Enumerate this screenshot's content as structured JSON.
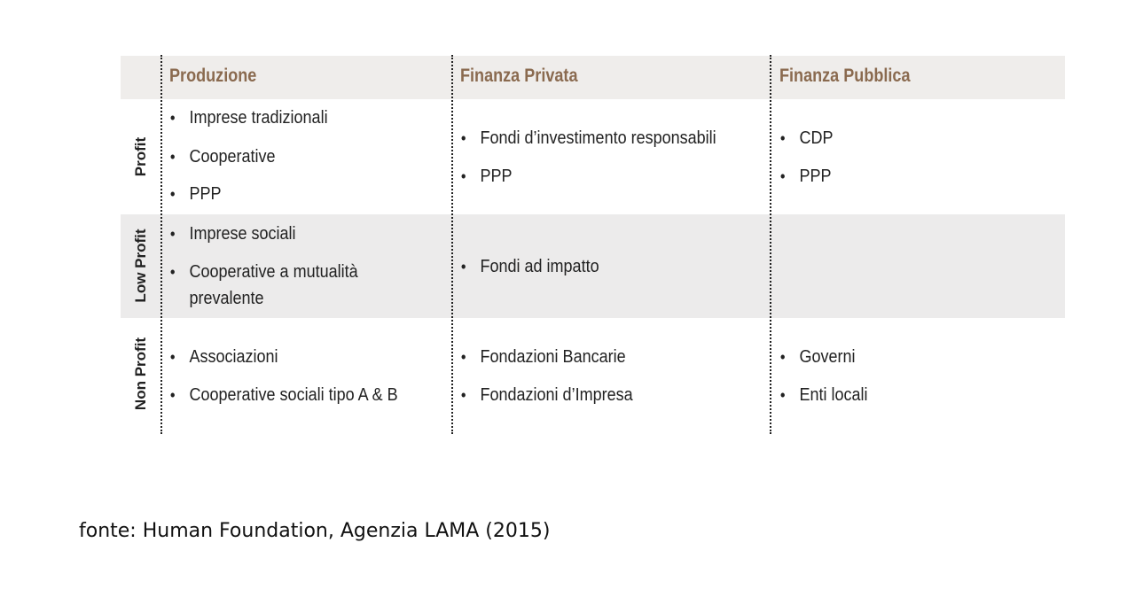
{
  "columns": [
    "Produzione",
    "Finanza Privata",
    "Finanza Pubblica"
  ],
  "rows": [
    {
      "label": "Profit",
      "cells": [
        [
          "Imprese tradizionali",
          "Cooperative",
          "PPP"
        ],
        [
          "Fondi d’investimento responsabili",
          "PPP"
        ],
        [
          "CDP",
          "PPP"
        ]
      ]
    },
    {
      "label": "Low Profit",
      "cells": [
        [
          "Imprese sociali",
          "Cooperative a mutualità prevalente"
        ],
        [
          "Fondi ad impatto"
        ],
        []
      ]
    },
    {
      "label": "Non Profit",
      "cells": [
        [
          "Associazioni",
          "Cooperative sociali tipo A & B"
        ],
        [
          "Fondazioni Bancarie",
          "Fondazioni d’Impresa"
        ],
        [
          "Governi",
          "Enti locali"
        ]
      ]
    }
  ],
  "source": "fonte: Human Foundation, Agenzia LAMA (2015)",
  "colors": {
    "header_text": "#8a6a4f",
    "band": "#ecebeb"
  }
}
